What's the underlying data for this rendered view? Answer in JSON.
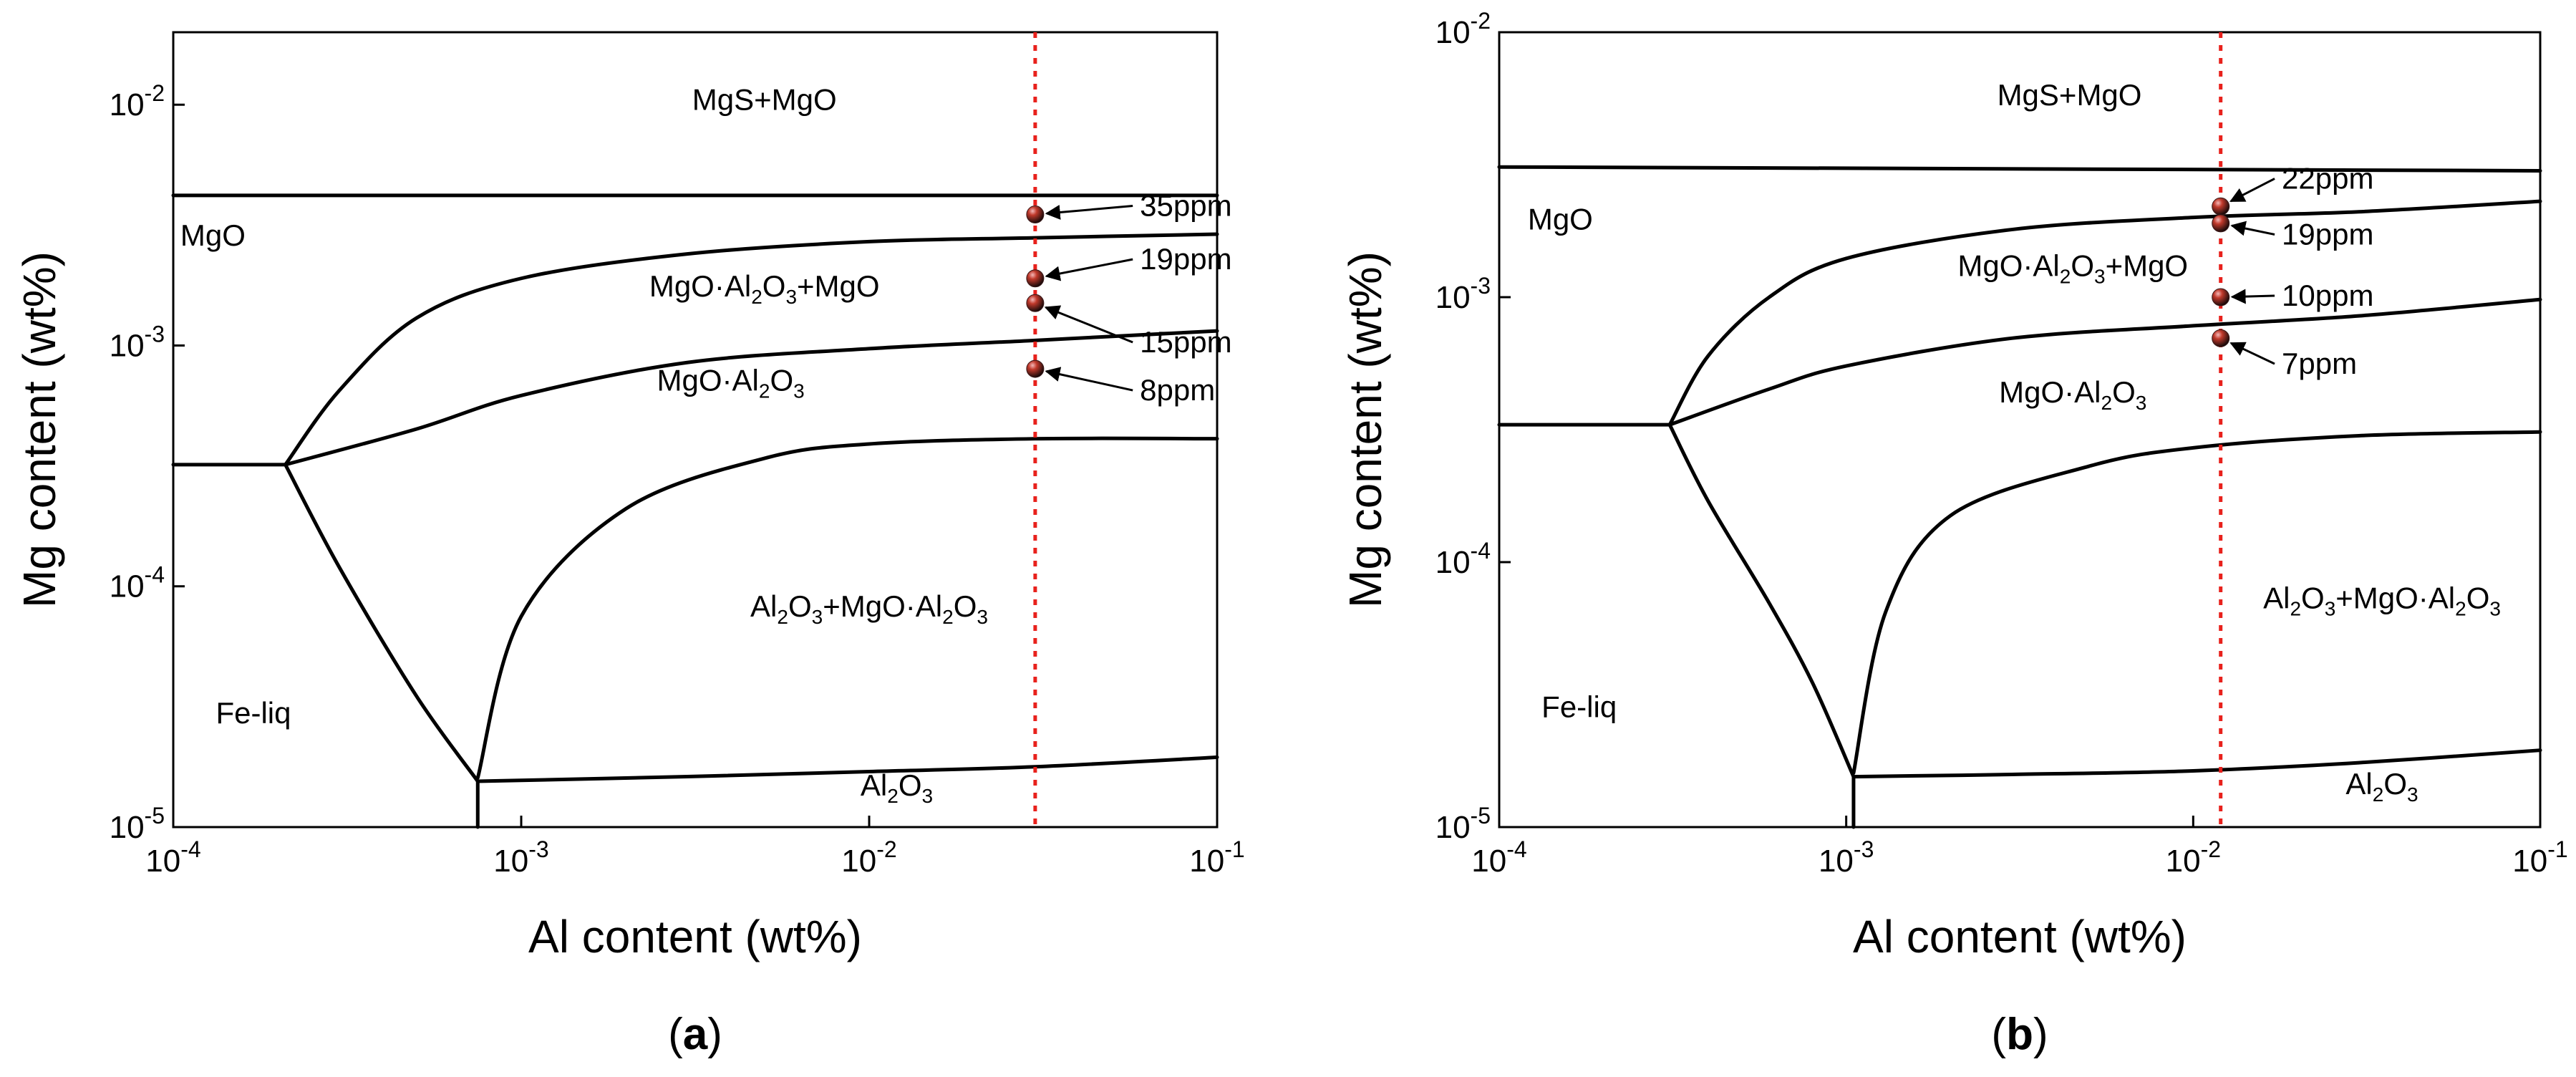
{
  "chart_data": [
    {
      "type": "line",
      "subtitle": "(a)",
      "subtitle_letter": "a",
      "xlabel": "Al content (wt%)",
      "ylabel": "Mg content (wt%)",
      "xscale": "log",
      "yscale": "log",
      "xlim": [
        0.0001,
        0.1
      ],
      "ylim": [
        1e-05,
        0.02
      ],
      "x_ticks": [
        {
          "exp": "-4",
          "value": 0.0001
        },
        {
          "exp": "-3",
          "value": 0.001
        },
        {
          "exp": "-2",
          "value": 0.01
        },
        {
          "exp": "-1",
          "value": 0.1
        }
      ],
      "y_ticks": [
        {
          "exp": "-5",
          "value": 1e-05
        },
        {
          "exp": "-4",
          "value": 0.0001
        },
        {
          "exp": "-3",
          "value": 0.001
        },
        {
          "exp": "-2",
          "value": 0.01
        }
      ],
      "tick_base": "10",
      "boundaries": [
        {
          "name": "MgS+MgO / MgO",
          "x": [
            0.0001,
            0.1
          ],
          "y": [
            0.0042,
            0.0042
          ]
        },
        {
          "name": "Fe-liq / MgO",
          "x": [
            0.0001,
            0.00021
          ],
          "y": [
            0.00032,
            0.00032
          ]
        },
        {
          "name": "MgO / MgO·Al2O3+MgO",
          "x": [
            0.00021,
            0.0003,
            0.0005,
            0.001,
            0.003,
            0.01,
            0.03,
            0.1
          ],
          "y": [
            0.00032,
            0.00065,
            0.0013,
            0.0019,
            0.0024,
            0.0027,
            0.0028,
            0.0029
          ]
        },
        {
          "name": "MgO·Al2O3+MgO / MgO·Al2O3",
          "x": [
            0.00021,
            0.0005,
            0.001,
            0.003,
            0.01,
            0.03,
            0.1
          ],
          "y": [
            0.00032,
            0.00045,
            0.00062,
            0.00085,
            0.00097,
            0.00105,
            0.00115
          ]
        },
        {
          "name": "MgO·Al2O3 / Al2O3+MgO·Al2O3",
          "x": [
            0.00075,
            0.001,
            0.002,
            0.005,
            0.01,
            0.03,
            0.1
          ],
          "y": [
            1.6e-05,
            7.5e-05,
            0.00021,
            0.00034,
            0.00039,
            0.00041,
            0.00041
          ]
        },
        {
          "name": "Fe-liq / spinel",
          "x": [
            0.00021,
            0.0003,
            0.0005,
            0.00075
          ],
          "y": [
            0.00032,
            0.00012,
            3.5e-05,
            1.55e-05
          ]
        },
        {
          "name": "Al2O3 upper",
          "x": [
            0.00075,
            0.003,
            0.01,
            0.03,
            0.1
          ],
          "y": [
            1.55e-05,
            1.62e-05,
            1.7e-05,
            1.78e-05,
            1.95e-05
          ]
        },
        {
          "name": "Al2O3 left",
          "x": [
            0.00075,
            0.00075
          ],
          "y": [
            1.55e-05,
            1e-05
          ]
        }
      ],
      "vline": {
        "x": 0.03,
        "color": "#e8211c",
        "style": "dotted"
      },
      "points": [
        {
          "x": 0.03,
          "y": 0.0035,
          "label": "35ppm",
          "label_at": [
            0.06,
            0.0035
          ]
        },
        {
          "x": 0.03,
          "y": 0.0019,
          "label": "19ppm",
          "label_at": [
            0.06,
            0.0021
          ]
        },
        {
          "x": 0.03,
          "y": 0.0015,
          "label": "15ppm",
          "label_at": [
            0.06,
            0.00095
          ]
        },
        {
          "x": 0.03,
          "y": 0.0008,
          "label": "8ppm",
          "label_at": [
            0.06,
            0.0006
          ]
        }
      ],
      "regions": [
        {
          "parts": [
            {
              "t": "MgS+MgO"
            }
          ],
          "at": [
            0.005,
            0.0095
          ]
        },
        {
          "parts": [
            {
              "t": "MgO"
            }
          ],
          "at": [
            0.00013,
            0.0026
          ]
        },
        {
          "parts": [
            {
              "t": "MgO·Al"
            },
            {
              "t": "2",
              "sub": true
            },
            {
              "t": "O"
            },
            {
              "t": "3",
              "sub": true
            },
            {
              "t": "+MgO"
            }
          ],
          "at": [
            0.005,
            0.0016
          ]
        },
        {
          "parts": [
            {
              "t": "MgO·Al"
            },
            {
              "t": "2",
              "sub": true
            },
            {
              "t": "O"
            },
            {
              "t": "3",
              "sub": true
            }
          ],
          "at": [
            0.004,
            0.00065
          ]
        },
        {
          "parts": [
            {
              "t": "Al"
            },
            {
              "t": "2",
              "sub": true
            },
            {
              "t": "O"
            },
            {
              "t": "3",
              "sub": true
            },
            {
              "t": "+MgO·Al"
            },
            {
              "t": "2",
              "sub": true
            },
            {
              "t": "O"
            },
            {
              "t": "3",
              "sub": true
            }
          ],
          "at": [
            0.01,
            7.5e-05
          ]
        },
        {
          "parts": [
            {
              "t": "Fe-liq"
            }
          ],
          "at": [
            0.00017,
            2.7e-05
          ]
        },
        {
          "parts": [
            {
              "t": "Al"
            },
            {
              "t": "2",
              "sub": true
            },
            {
              "t": "O"
            },
            {
              "t": "3",
              "sub": true
            }
          ],
          "at": [
            0.012,
            1.35e-05
          ]
        }
      ],
      "colors": {
        "line": "#000000",
        "dashed": "#e8211c",
        "point": "#3a1a1a",
        "point_highlight": "#e58b8b"
      }
    },
    {
      "type": "line",
      "subtitle": "(b)",
      "subtitle_letter": "b",
      "xlabel": "Al content (wt%)",
      "ylabel": "Mg content (wt%)",
      "xscale": "log",
      "yscale": "log",
      "xlim": [
        0.0001,
        0.1
      ],
      "ylim": [
        1e-05,
        0.01
      ],
      "x_ticks": [
        {
          "exp": "-4",
          "value": 0.0001
        },
        {
          "exp": "-3",
          "value": 0.001
        },
        {
          "exp": "-2",
          "value": 0.01
        },
        {
          "exp": "-1",
          "value": 0.1
        }
      ],
      "y_ticks": [
        {
          "exp": "-5",
          "value": 1e-05
        },
        {
          "exp": "-4",
          "value": 0.0001
        },
        {
          "exp": "-3",
          "value": 0.001
        },
        {
          "exp": "-2",
          "value": 0.01
        }
      ],
      "tick_base": "10",
      "boundaries": [
        {
          "name": "MgS+MgO / MgO",
          "x": [
            0.0001,
            0.1
          ],
          "y": [
            0.0031,
            0.003
          ]
        },
        {
          "name": "Fe-liq / MgO",
          "x": [
            0.0001,
            0.00031
          ],
          "y": [
            0.00033,
            0.00033
          ]
        },
        {
          "name": "MgO / MgO·Al2O3+MgO",
          "x": [
            0.00031,
            0.0004,
            0.0006,
            0.001,
            0.003,
            0.01,
            0.03,
            0.1
          ],
          "y": [
            0.00033,
            0.0006,
            0.001,
            0.0014,
            0.0018,
            0.002,
            0.0021,
            0.0023
          ]
        },
        {
          "name": "MgO·Al2O3+MgO / MgO·Al2O3",
          "x": [
            0.00031,
            0.0006,
            0.001,
            0.003,
            0.01,
            0.03,
            0.1
          ],
          "y": [
            0.00033,
            0.00045,
            0.00055,
            0.0007,
            0.00078,
            0.00085,
            0.00098
          ]
        },
        {
          "name": "MgO·Al2O3 / Al2O3+MgO·Al2O3",
          "x": [
            0.00105,
            0.0013,
            0.002,
            0.005,
            0.01,
            0.03,
            0.1
          ],
          "y": [
            1.6e-05,
            6.5e-05,
            0.00015,
            0.00023,
            0.00027,
            0.0003,
            0.00031
          ]
        },
        {
          "name": "Fe-liq / spinel",
          "x": [
            0.00031,
            0.0004,
            0.0006,
            0.0008,
            0.00105
          ],
          "y": [
            0.00033,
            0.00017,
            7e-05,
            3.5e-05,
            1.55e-05
          ]
        },
        {
          "name": "Al2O3 upper",
          "x": [
            0.00105,
            0.003,
            0.01,
            0.03,
            0.1
          ],
          "y": [
            1.55e-05,
            1.58e-05,
            1.63e-05,
            1.75e-05,
            1.95e-05
          ]
        },
        {
          "name": "Al2O3 left",
          "x": [
            0.00105,
            0.00105
          ],
          "y": [
            1.55e-05,
            1e-05
          ]
        }
      ],
      "vline": {
        "x": 0.012,
        "color": "#e8211c",
        "style": "dotted"
      },
      "points": [
        {
          "x": 0.012,
          "y": 0.0022,
          "label": "22ppm",
          "label_at": [
            0.018,
            0.0026
          ]
        },
        {
          "x": 0.012,
          "y": 0.0019,
          "label": "19ppm",
          "label_at": [
            0.018,
            0.0016
          ]
        },
        {
          "x": 0.012,
          "y": 0.001,
          "label": "10ppm",
          "label_at": [
            0.018,
            0.00094
          ]
        },
        {
          "x": 0.012,
          "y": 0.0007,
          "label": "7ppm",
          "label_at": [
            0.018,
            0.00052
          ]
        }
      ],
      "regions": [
        {
          "parts": [
            {
              "t": "MgS+MgO"
            }
          ],
          "at": [
            0.0044,
            0.0053
          ]
        },
        {
          "parts": [
            {
              "t": "MgO"
            }
          ],
          "at": [
            0.00015,
            0.0018
          ]
        },
        {
          "parts": [
            {
              "t": "MgO·Al"
            },
            {
              "t": "2",
              "sub": true
            },
            {
              "t": "O"
            },
            {
              "t": "3",
              "sub": true
            },
            {
              "t": "+MgO"
            }
          ],
          "at": [
            0.0045,
            0.0012
          ]
        },
        {
          "parts": [
            {
              "t": "MgO·Al"
            },
            {
              "t": "2",
              "sub": true
            },
            {
              "t": "O"
            },
            {
              "t": "3",
              "sub": true
            }
          ],
          "at": [
            0.0045,
            0.0004
          ]
        },
        {
          "parts": [
            {
              "t": "Al"
            },
            {
              "t": "2",
              "sub": true
            },
            {
              "t": "O"
            },
            {
              "t": "3",
              "sub": true
            },
            {
              "t": "+MgO·Al"
            },
            {
              "t": "2",
              "sub": true
            },
            {
              "t": "O"
            },
            {
              "t": "3",
              "sub": true
            }
          ],
          "at": [
            0.035,
            6.7e-05
          ]
        },
        {
          "parts": [
            {
              "t": "Fe-liq"
            }
          ],
          "at": [
            0.00017,
            2.6e-05
          ]
        },
        {
          "parts": [
            {
              "t": "Al"
            },
            {
              "t": "2",
              "sub": true
            },
            {
              "t": "O"
            },
            {
              "t": "3",
              "sub": true
            }
          ],
          "at": [
            0.035,
            1.33e-05
          ]
        }
      ],
      "colors": {
        "line": "#000000",
        "dashed": "#e8211c",
        "point": "#3a1a1a",
        "point_highlight": "#e58b8b"
      }
    }
  ]
}
